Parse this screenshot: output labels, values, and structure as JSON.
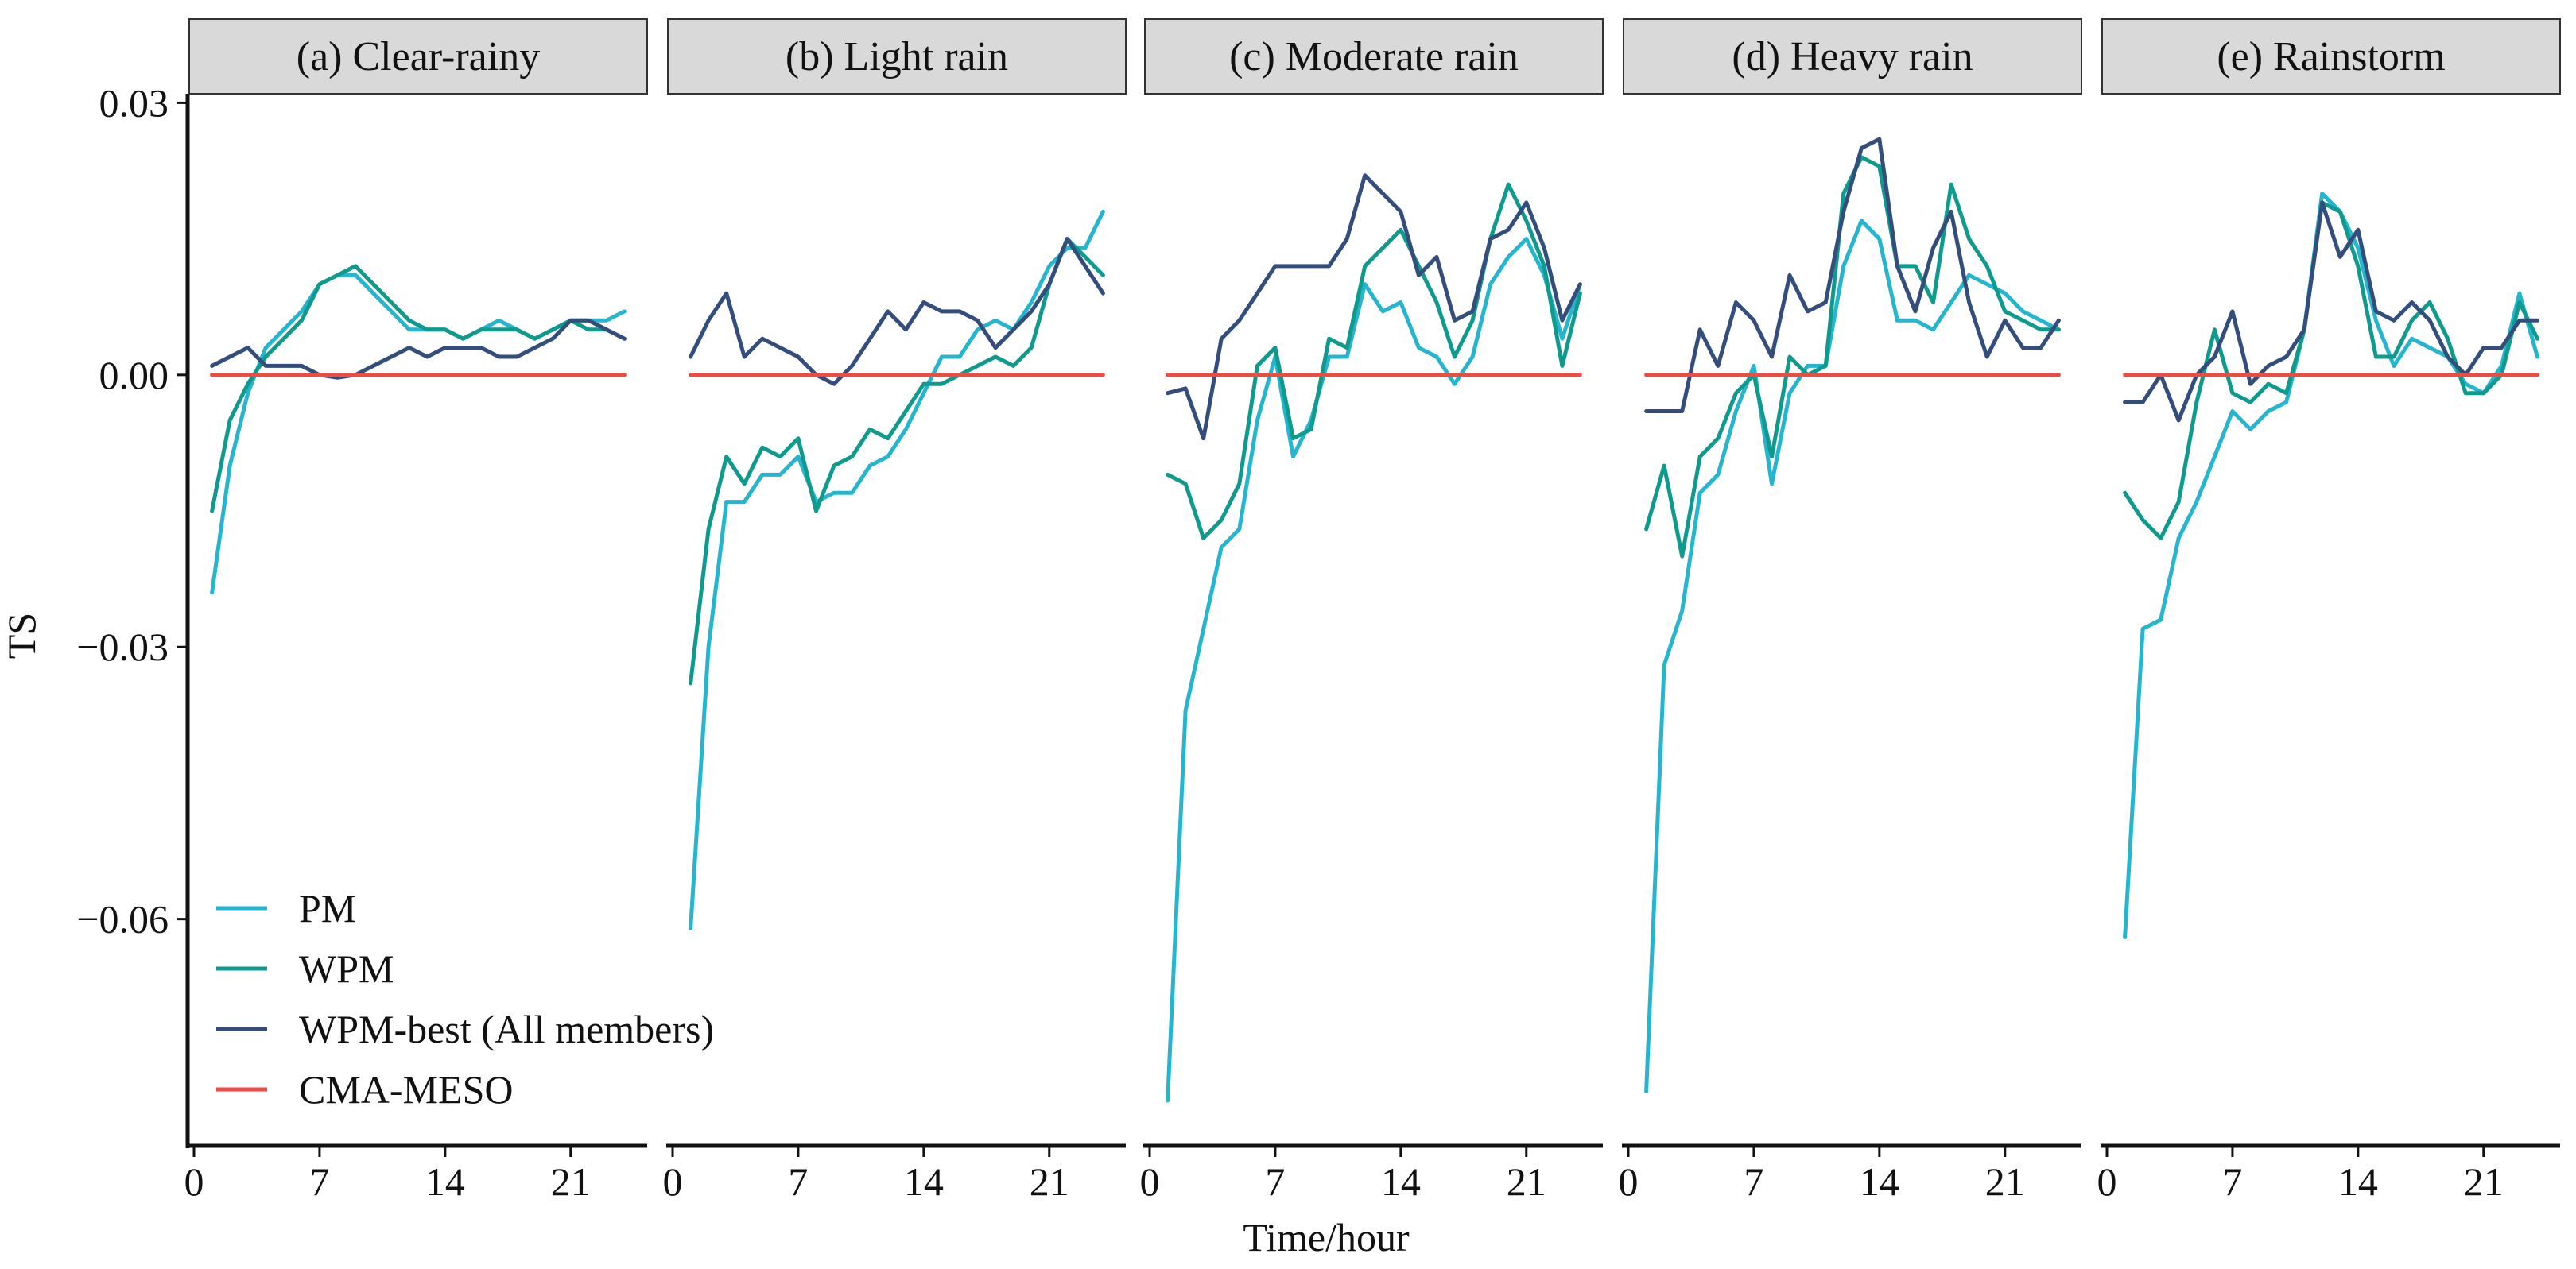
{
  "chart_data": {
    "type": "line",
    "ylabel": "TS",
    "xlabel": "Time/hour",
    "ylim": [
      -0.085,
      0.031
    ],
    "xlim": [
      0,
      25
    ],
    "yticks": [
      -0.06,
      -0.03,
      0.0,
      0.03
    ],
    "ytick_labels": [
      "−0.06",
      "−0.03",
      "0.00",
      "0.03"
    ],
    "xticks": [
      0,
      7,
      14,
      21
    ],
    "xtick_labels": [
      "0",
      "7",
      "14",
      "21"
    ],
    "legend": {
      "position": "bottom-left",
      "entries": [
        {
          "name": "PM",
          "color": "#25b5cf"
        },
        {
          "name": "WPM",
          "color": "#0e9a8d"
        },
        {
          "name": "WPM-best (All members)",
          "color": "#334d7c"
        },
        {
          "name": "CMA-MESO",
          "color": "#ef4b42"
        }
      ]
    },
    "x": [
      1,
      2,
      3,
      4,
      5,
      6,
      7,
      8,
      9,
      10,
      11,
      12,
      13,
      14,
      15,
      16,
      17,
      18,
      19,
      20,
      21,
      22,
      23,
      24
    ],
    "panels": [
      {
        "title": "(a) Clear-rainy",
        "series": [
          {
            "name": "PM",
            "color": "#25b5cf",
            "values": [
              -0.024,
              -0.01,
              -0.002,
              0.003,
              0.005,
              0.007,
              0.01,
              0.011,
              0.011,
              0.009,
              0.007,
              0.005,
              0.005,
              0.005,
              0.004,
              0.005,
              0.006,
              0.005,
              0.004,
              0.005,
              0.006,
              0.006,
              0.006,
              0.007
            ]
          },
          {
            "name": "WPM",
            "color": "#0e9a8d",
            "values": [
              -0.015,
              -0.005,
              -0.001,
              0.002,
              0.004,
              0.006,
              0.01,
              0.011,
              0.012,
              0.01,
              0.008,
              0.006,
              0.005,
              0.005,
              0.004,
              0.005,
              0.005,
              0.005,
              0.004,
              0.005,
              0.006,
              0.005,
              0.005,
              0.004
            ]
          },
          {
            "name": "WPM-best (All members)",
            "color": "#334d7c",
            "values": [
              0.001,
              0.002,
              0.003,
              0.001,
              0.001,
              0.001,
              0.0,
              -0.0003,
              0.0,
              0.001,
              0.002,
              0.003,
              0.002,
              0.003,
              0.003,
              0.003,
              0.002,
              0.002,
              0.003,
              0.004,
              0.006,
              0.006,
              0.005,
              0.004
            ]
          },
          {
            "name": "CMA-MESO",
            "color": "#ef4b42",
            "values": [
              0,
              0,
              0,
              0,
              0,
              0,
              0,
              0,
              0,
              0,
              0,
              0,
              0,
              0,
              0,
              0,
              0,
              0,
              0,
              0,
              0,
              0,
              0,
              0
            ]
          }
        ]
      },
      {
        "title": "(b) Light rain",
        "series": [
          {
            "name": "PM",
            "color": "#25b5cf",
            "values": [
              -0.061,
              -0.03,
              -0.014,
              -0.014,
              -0.011,
              -0.011,
              -0.009,
              -0.014,
              -0.013,
              -0.013,
              -0.01,
              -0.009,
              -0.006,
              -0.002,
              0.002,
              0.002,
              0.005,
              0.006,
              0.005,
              0.008,
              0.012,
              0.014,
              0.014,
              0.018
            ]
          },
          {
            "name": "WPM",
            "color": "#0e9a8d",
            "values": [
              -0.034,
              -0.017,
              -0.009,
              -0.012,
              -0.008,
              -0.009,
              -0.007,
              -0.015,
              -0.01,
              -0.009,
              -0.006,
              -0.007,
              -0.004,
              -0.001,
              -0.001,
              0.0,
              0.001,
              0.002,
              0.001,
              0.003,
              0.01,
              0.015,
              0.013,
              0.011
            ]
          },
          {
            "name": "WPM-best (All members)",
            "color": "#334d7c",
            "values": [
              0.002,
              0.006,
              0.009,
              0.002,
              0.004,
              0.003,
              0.002,
              0.0,
              -0.001,
              0.001,
              0.004,
              0.007,
              0.005,
              0.008,
              0.007,
              0.007,
              0.006,
              0.003,
              0.005,
              0.007,
              0.01,
              0.015,
              0.012,
              0.009
            ]
          },
          {
            "name": "CMA-MESO",
            "color": "#ef4b42",
            "values": [
              0,
              0,
              0,
              0,
              0,
              0,
              0,
              0,
              0,
              0,
              0,
              0,
              0,
              0,
              0,
              0,
              0,
              0,
              0,
              0,
              0,
              0,
              0,
              0
            ]
          }
        ]
      },
      {
        "title": "(c) Moderate rain",
        "series": [
          {
            "name": "PM",
            "color": "#25b5cf",
            "values": [
              -0.08,
              -0.037,
              -0.028,
              -0.019,
              -0.017,
              -0.005,
              0.002,
              -0.009,
              -0.005,
              0.002,
              0.002,
              0.01,
              0.007,
              0.008,
              0.003,
              0.002,
              -0.001,
              0.002,
              0.01,
              0.013,
              0.015,
              0.011,
              0.004,
              0.01
            ]
          },
          {
            "name": "WPM",
            "color": "#0e9a8d",
            "values": [
              -0.011,
              -0.012,
              -0.018,
              -0.016,
              -0.012,
              0.001,
              0.003,
              -0.007,
              -0.006,
              0.004,
              0.003,
              0.012,
              0.014,
              0.016,
              0.012,
              0.008,
              0.002,
              0.006,
              0.015,
              0.021,
              0.017,
              0.012,
              0.001,
              0.009
            ]
          },
          {
            "name": "WPM-best (All members)",
            "color": "#334d7c",
            "values": [
              -0.002,
              -0.0015,
              -0.007,
              0.004,
              0.006,
              0.009,
              0.012,
              0.012,
              0.012,
              0.012,
              0.015,
              0.022,
              0.02,
              0.018,
              0.011,
              0.013,
              0.006,
              0.007,
              0.015,
              0.016,
              0.019,
              0.014,
              0.006,
              0.01
            ]
          },
          {
            "name": "CMA-MESO",
            "color": "#ef4b42",
            "values": [
              0,
              0,
              0,
              0,
              0,
              0,
              0,
              0,
              0,
              0,
              0,
              0,
              0,
              0,
              0,
              0,
              0,
              0,
              0,
              0,
              0,
              0,
              0,
              0
            ]
          }
        ]
      },
      {
        "title": "(d) Heavy rain",
        "series": [
          {
            "name": "PM",
            "color": "#25b5cf",
            "values": [
              -0.079,
              -0.032,
              -0.026,
              -0.013,
              -0.011,
              -0.004,
              0.001,
              -0.012,
              -0.002,
              0.001,
              0.001,
              0.012,
              0.017,
              0.015,
              0.006,
              0.006,
              0.005,
              0.008,
              0.011,
              0.01,
              0.009,
              0.007,
              0.006,
              0.005
            ]
          },
          {
            "name": "WPM",
            "color": "#0e9a8d",
            "values": [
              -0.017,
              -0.01,
              -0.02,
              -0.009,
              -0.007,
              -0.002,
              0.0,
              -0.009,
              0.002,
              0.0,
              0.001,
              0.02,
              0.024,
              0.023,
              0.012,
              0.012,
              0.008,
              0.021,
              0.015,
              0.012,
              0.007,
              0.006,
              0.005,
              0.005
            ]
          },
          {
            "name": "WPM-best (All members)",
            "color": "#334d7c",
            "values": [
              -0.004,
              -0.004,
              -0.004,
              0.005,
              0.001,
              0.008,
              0.006,
              0.002,
              0.011,
              0.007,
              0.008,
              0.018,
              0.025,
              0.026,
              0.012,
              0.007,
              0.014,
              0.018,
              0.008,
              0.002,
              0.006,
              0.003,
              0.003,
              0.006
            ]
          },
          {
            "name": "CMA-MESO",
            "color": "#ef4b42",
            "values": [
              0,
              0,
              0,
              0,
              0,
              0,
              0,
              0,
              0,
              0,
              0,
              0,
              0,
              0,
              0,
              0,
              0,
              0,
              0,
              0,
              0,
              0,
              0,
              0
            ]
          }
        ]
      },
      {
        "title": "(e) Rainstorm",
        "series": [
          {
            "name": "PM",
            "color": "#25b5cf",
            "values": [
              -0.062,
              -0.028,
              -0.027,
              -0.018,
              -0.014,
              -0.009,
              -0.004,
              -0.006,
              -0.004,
              -0.003,
              0.005,
              0.02,
              0.018,
              0.014,
              0.006,
              0.001,
              0.004,
              0.003,
              0.002,
              -0.001,
              -0.002,
              0.001,
              0.009,
              0.002
            ]
          },
          {
            "name": "WPM",
            "color": "#0e9a8d",
            "values": [
              -0.013,
              -0.016,
              -0.018,
              -0.014,
              -0.003,
              0.005,
              -0.002,
              -0.003,
              -0.001,
              -0.002,
              0.005,
              0.019,
              0.018,
              0.012,
              0.002,
              0.002,
              0.006,
              0.008,
              0.004,
              -0.002,
              -0.002,
              0.0,
              0.008,
              0.004
            ]
          },
          {
            "name": "WPM-best (All members)",
            "color": "#334d7c",
            "values": [
              -0.003,
              -0.003,
              0.0,
              -0.005,
              0.0,
              0.002,
              0.007,
              -0.001,
              0.001,
              0.002,
              0.005,
              0.019,
              0.013,
              0.016,
              0.007,
              0.006,
              0.008,
              0.006,
              0.002,
              0.0,
              0.003,
              0.003,
              0.006,
              0.006
            ]
          },
          {
            "name": "CMA-MESO",
            "color": "#ef4b42",
            "values": [
              0,
              0,
              0,
              0,
              0,
              0,
              0,
              0,
              0,
              0,
              0,
              0,
              0,
              0,
              0,
              0,
              0,
              0,
              0,
              0,
              0,
              0,
              0,
              0
            ]
          }
        ]
      }
    ]
  }
}
